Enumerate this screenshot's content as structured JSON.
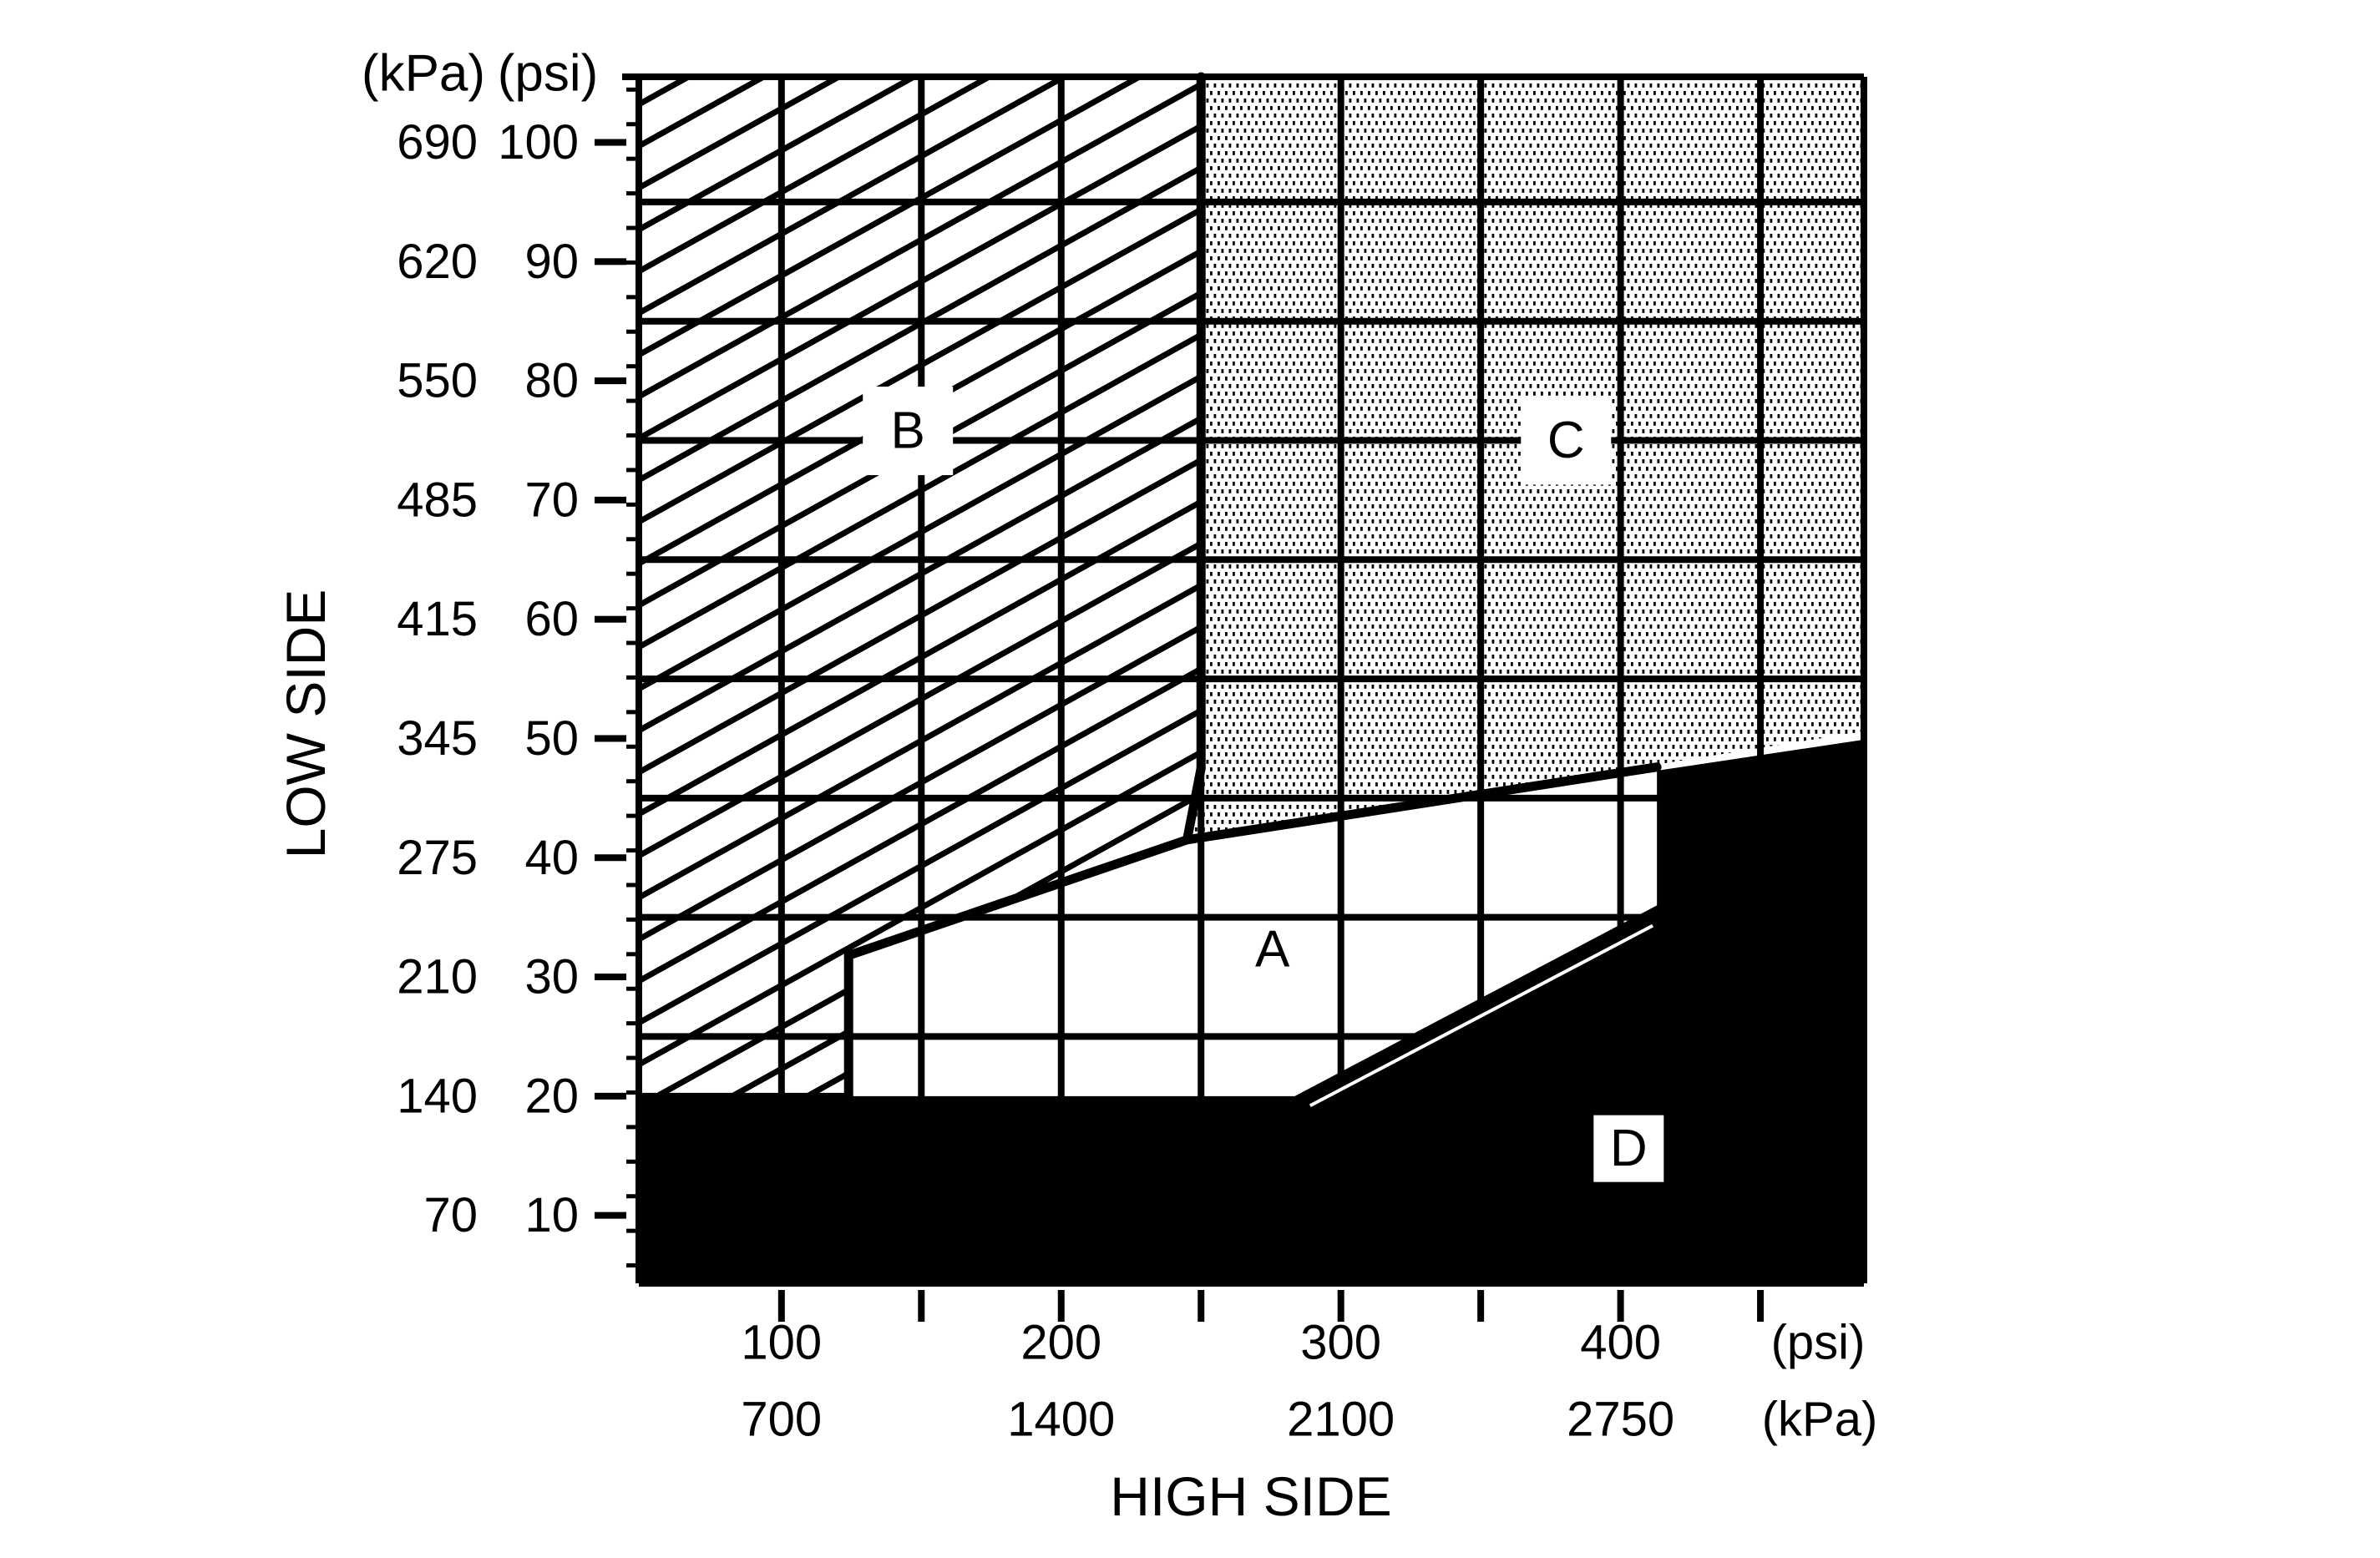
{
  "chart_data": {
    "type": "area",
    "title": "",
    "xlabel": "HIGH SIDE",
    "ylabel": "LOW SIDE",
    "colors": {
      "ink": "#000000",
      "paper": "#ffffff"
    },
    "x_axis": {
      "unit_primary": "(psi)",
      "unit_secondary": "(kPa)",
      "range_psi": [
        49,
        487
      ],
      "gridlines_psi": [
        100,
        150,
        200,
        250,
        300,
        350,
        400,
        450
      ],
      "ticks_psi": [
        100,
        150,
        200,
        250,
        300,
        350,
        400,
        450
      ],
      "labels": [
        {
          "psi": 100,
          "kpa": 700
        },
        {
          "psi": 200,
          "kpa": 1400
        },
        {
          "psi": 300,
          "kpa": 2100
        },
        {
          "psi": 400,
          "kpa": 2750
        }
      ]
    },
    "y_axis": {
      "header_kpa": "(kPa)",
      "header_psi": "(psi)",
      "range_psi": [
        4.3,
        105.5
      ],
      "gridlines_psi": [
        15,
        25,
        35,
        45,
        55,
        65,
        75,
        85,
        95
      ],
      "minor_tick_kpa_step": 20,
      "minor_tick_kpa_range": [
        40,
        720
      ],
      "labels": [
        {
          "psi": 100,
          "kpa": 690
        },
        {
          "psi": 90,
          "kpa": 620
        },
        {
          "psi": 80,
          "kpa": 550
        },
        {
          "psi": 70,
          "kpa": 485
        },
        {
          "psi": 60,
          "kpa": 415
        },
        {
          "psi": 50,
          "kpa": 345
        },
        {
          "psi": 40,
          "kpa": 275
        },
        {
          "psi": 30,
          "kpa": 210
        },
        {
          "psi": 20,
          "kpa": 140
        },
        {
          "psi": 10,
          "kpa": 70
        }
      ]
    },
    "regions": [
      {
        "id": "A",
        "label": "A",
        "fill": "white",
        "label_pos_psi": [
          275.5,
          32.3
        ],
        "label_box": false
      },
      {
        "id": "B",
        "label": "B",
        "fill": "hatch",
        "polygon_psi": [
          [
            49,
            105.5
          ],
          [
            250,
            105.5
          ],
          [
            250,
            47.5
          ],
          [
            245,
            41.5
          ],
          [
            124,
            31.8
          ],
          [
            124,
            20
          ],
          [
            49,
            20
          ]
        ],
        "label_pos_psi": [
          145.2,
          75.8
        ],
        "label_box": true
      },
      {
        "id": "C",
        "label": "C",
        "fill": "dots",
        "polygon_psi": [
          [
            250,
            105.5
          ],
          [
            487,
            105.5
          ],
          [
            487,
            50.6
          ],
          [
            245,
            41.5
          ],
          [
            250,
            47.5
          ]
        ],
        "label_pos_psi": [
          380.5,
          75.0
        ],
        "label_box": true
      },
      {
        "id": "D",
        "label": "D",
        "fill": "black",
        "polygon_psi": [
          [
            49,
            20
          ],
          [
            283.5,
            20
          ],
          [
            413,
            36
          ],
          [
            413,
            47.3
          ],
          [
            487,
            49.9
          ],
          [
            487,
            4.3
          ],
          [
            49,
            4.3
          ]
        ],
        "label_pos_psi": [
          402.9,
          15.6
        ],
        "label_box": true
      }
    ],
    "boundary_lines_psi": [
      [
        [
          250,
          105.5
        ],
        [
          250,
          47.5
        ]
      ],
      [
        [
          250,
          47.5
        ],
        [
          245,
          41.5
        ]
      ],
      [
        [
          245,
          41.5
        ],
        [
          124,
          31.8
        ]
      ],
      [
        [
          124,
          31.8
        ],
        [
          124,
          20
        ]
      ],
      [
        [
          245,
          41.5
        ],
        [
          413,
          47.6
        ]
      ]
    ],
    "white_sliver_psi": [
      [
        289,
        19.2
      ],
      [
        411.5,
        34.3
      ]
    ],
    "legend_position": "none",
    "grid": "on"
  }
}
